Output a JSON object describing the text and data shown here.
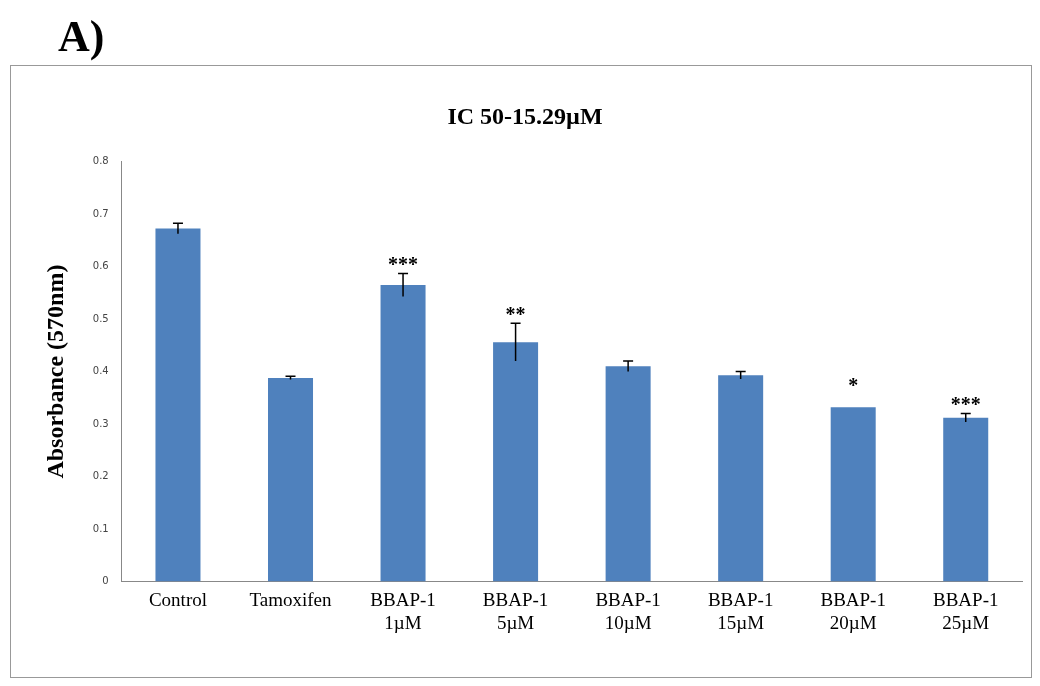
{
  "chart_data": {
    "type": "bar",
    "title": "IC 50-15.29µM",
    "ylabel": "Absorbance (570nm)",
    "categories": [
      "Control",
      "Tamoxifen",
      "BBAP-1 1µM",
      "BBAP-1 5µM",
      "BBAP-1 10µM",
      "BBAP-1 15µM",
      "BBAP-1 20µM",
      "BBAP-1 25µM"
    ],
    "values": [
      0.673,
      0.388,
      0.565,
      0.456,
      0.41,
      0.393,
      0.332,
      0.312
    ],
    "errors": [
      0.01,
      0.003,
      0.022,
      0.036,
      0.01,
      0.007,
      null,
      0.008
    ],
    "color": "#4f81bd",
    "ylim": [
      0,
      0.8
    ],
    "yticks": [
      0,
      0.1,
      0.2,
      0.3,
      0.4,
      0.5,
      0.6,
      0.7,
      0.8
    ],
    "annotations": [
      "A)",
      {
        "text": "***",
        "x": "BBAP-1 1µM",
        "y": 0.565
      },
      {
        "text": "**",
        "x": "BBAP-1 5µM",
        "y": 0.456
      },
      {
        "text": "*",
        "x": "BBAP-1 20µM",
        "y": 0.332
      },
      {
        "text": "***",
        "x": "BBAP-1 25µM",
        "y": 0.312
      }
    ]
  }
}
